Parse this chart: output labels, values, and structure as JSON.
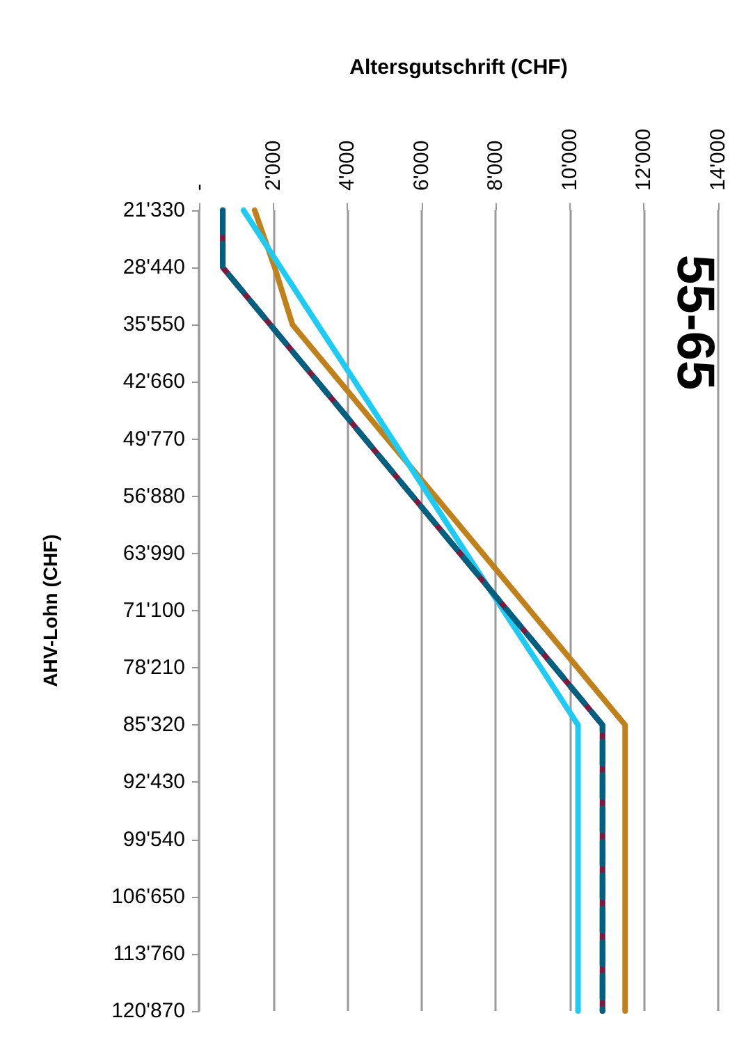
{
  "chart_data": {
    "type": "line",
    "orientation": "horizontal",
    "title": "55-65",
    "xlabel": "Altersgutschrift (CHF)",
    "ylabel": "AHV-Lohn (CHF)",
    "categories": [
      "21'330",
      "28'440",
      "35'550",
      "42'660",
      "49'770",
      "56'880",
      "63'990",
      "71'100",
      "78'210",
      "85'320",
      "92'430",
      "99'540",
      "106'650",
      "113'760",
      "120'870"
    ],
    "series": [
      {
        "color": "#c0801a",
        "values": [
          1500,
          2040,
          2520,
          3800,
          5080,
          6370,
          7650,
          8930,
          10210,
          11490,
          11490,
          11490,
          11490,
          11490,
          11490
        ]
      },
      {
        "color": "#1ecbf5",
        "values": [
          1200,
          2200,
          3200,
          4210,
          5210,
          6210,
          7210,
          8210,
          9220,
          10220,
          10220,
          10220,
          10220,
          10220,
          10220
        ]
      },
      {
        "color": "#7a1a3e",
        "values": [
          640,
          640,
          1920,
          3200,
          4480,
          5760,
          7040,
          8320,
          9600,
          10880,
          10880,
          10880,
          10880,
          10880,
          10880
        ]
      },
      {
        "color": "#00607f",
        "line_style": "dashed",
        "values": [
          640,
          640,
          1920,
          3200,
          4480,
          5760,
          7040,
          8320,
          9600,
          10880,
          10880,
          10880,
          10880,
          10880,
          10880
        ]
      }
    ],
    "xlim": [
      0,
      14000
    ],
    "xticks": [
      {
        "value": 0,
        "label": "-"
      },
      {
        "value": 2000,
        "label": "2'000"
      },
      {
        "value": 4000,
        "label": "4'000"
      },
      {
        "value": 6000,
        "label": "6'000"
      },
      {
        "value": 8000,
        "label": "8'000"
      },
      {
        "value": 10000,
        "label": "10'000"
      },
      {
        "value": 12000,
        "label": "12'000"
      },
      {
        "value": 14000,
        "label": "14'000"
      }
    ],
    "grid": "x",
    "marker": "none"
  }
}
